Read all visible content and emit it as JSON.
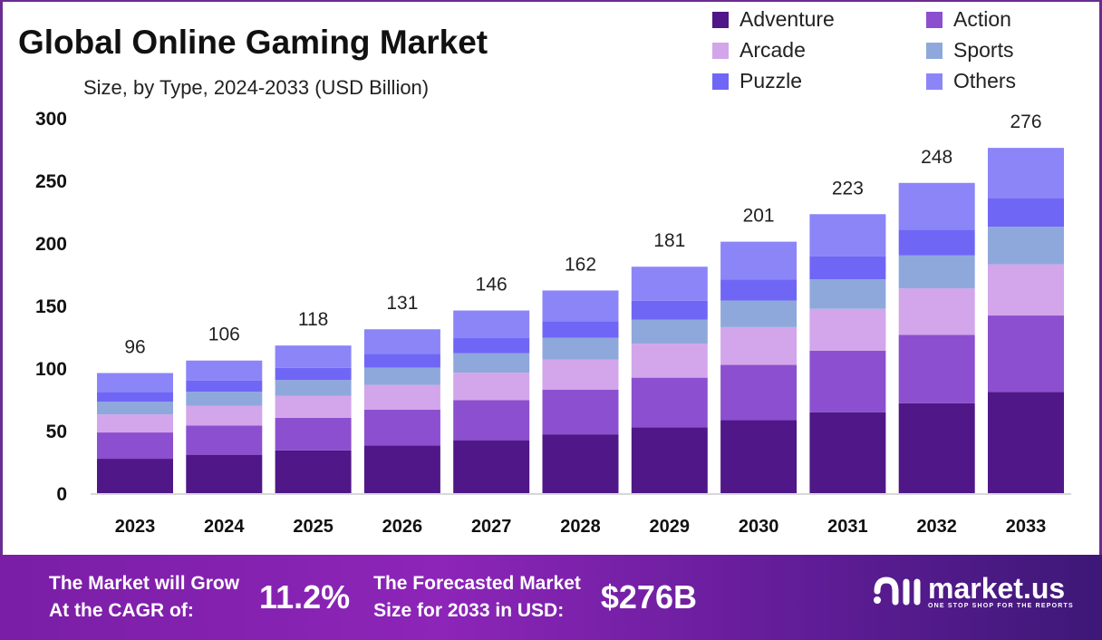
{
  "chart_data": {
    "type": "bar",
    "stacked": true,
    "title": "Global Online Gaming Market",
    "subtitle": "Size, by Type, 2024-2033 (USD Billion)",
    "xlabel": "",
    "ylabel": "",
    "ylim": [
      0,
      300
    ],
    "yticks": [
      0,
      50,
      100,
      150,
      200,
      250,
      300
    ],
    "grid": false,
    "legend_position": "top-right",
    "categories": [
      "2023",
      "2024",
      "2025",
      "2026",
      "2027",
      "2028",
      "2029",
      "2030",
      "2031",
      "2032",
      "2033"
    ],
    "totals": [
      96,
      106,
      118,
      131,
      146,
      162,
      181,
      201,
      223,
      248,
      276
    ],
    "series": [
      {
        "name": "Adventure",
        "color": "#4f1787",
        "values": [
          27.5,
          30.7,
          34.2,
          38.0,
          42.3,
          47.0,
          52.5,
          58.3,
          64.7,
          71.9,
          81
        ]
      },
      {
        "name": "Action",
        "color": "#8b4fcf",
        "values": [
          21,
          23.3,
          26.0,
          28.8,
          32.1,
          35.6,
          39.8,
          44.2,
          49.1,
          54.6,
          61
        ]
      },
      {
        "name": "Arcade",
        "color": "#d3a5ea",
        "values": [
          14.5,
          15.9,
          17.7,
          19.7,
          21.9,
          24.3,
          27.2,
          30.2,
          33.5,
          37.2,
          41
        ]
      },
      {
        "name": "Sports",
        "color": "#8fa8dc",
        "values": [
          10,
          11.2,
          12.5,
          13.9,
          15.5,
          17.2,
          19.2,
          21.3,
          23.6,
          26.3,
          30
        ]
      },
      {
        "name": "Puzzle",
        "color": "#7066f5",
        "values": [
          8,
          8.8,
          9.8,
          10.9,
          12.1,
          13.4,
          15.0,
          16.7,
          18.5,
          20.6,
          23
        ]
      },
      {
        "name": "Others",
        "color": "#8b85f8",
        "values": [
          15,
          16.1,
          17.8,
          19.7,
          22.1,
          24.5,
          27.3,
          30.3,
          33.6,
          37.4,
          40
        ]
      }
    ]
  },
  "banner": {
    "cagr_label_1": "The Market will Grow",
    "cagr_label_2": "At the CAGR of:",
    "cagr_value": "11.2%",
    "size_label_1": "The Forecasted Market",
    "size_label_2": "Size for 2033 in USD:",
    "size_value": "$276B",
    "logo_text": "market.us",
    "logo_tagline": "ONE STOP SHOP FOR THE REPORTS"
  }
}
